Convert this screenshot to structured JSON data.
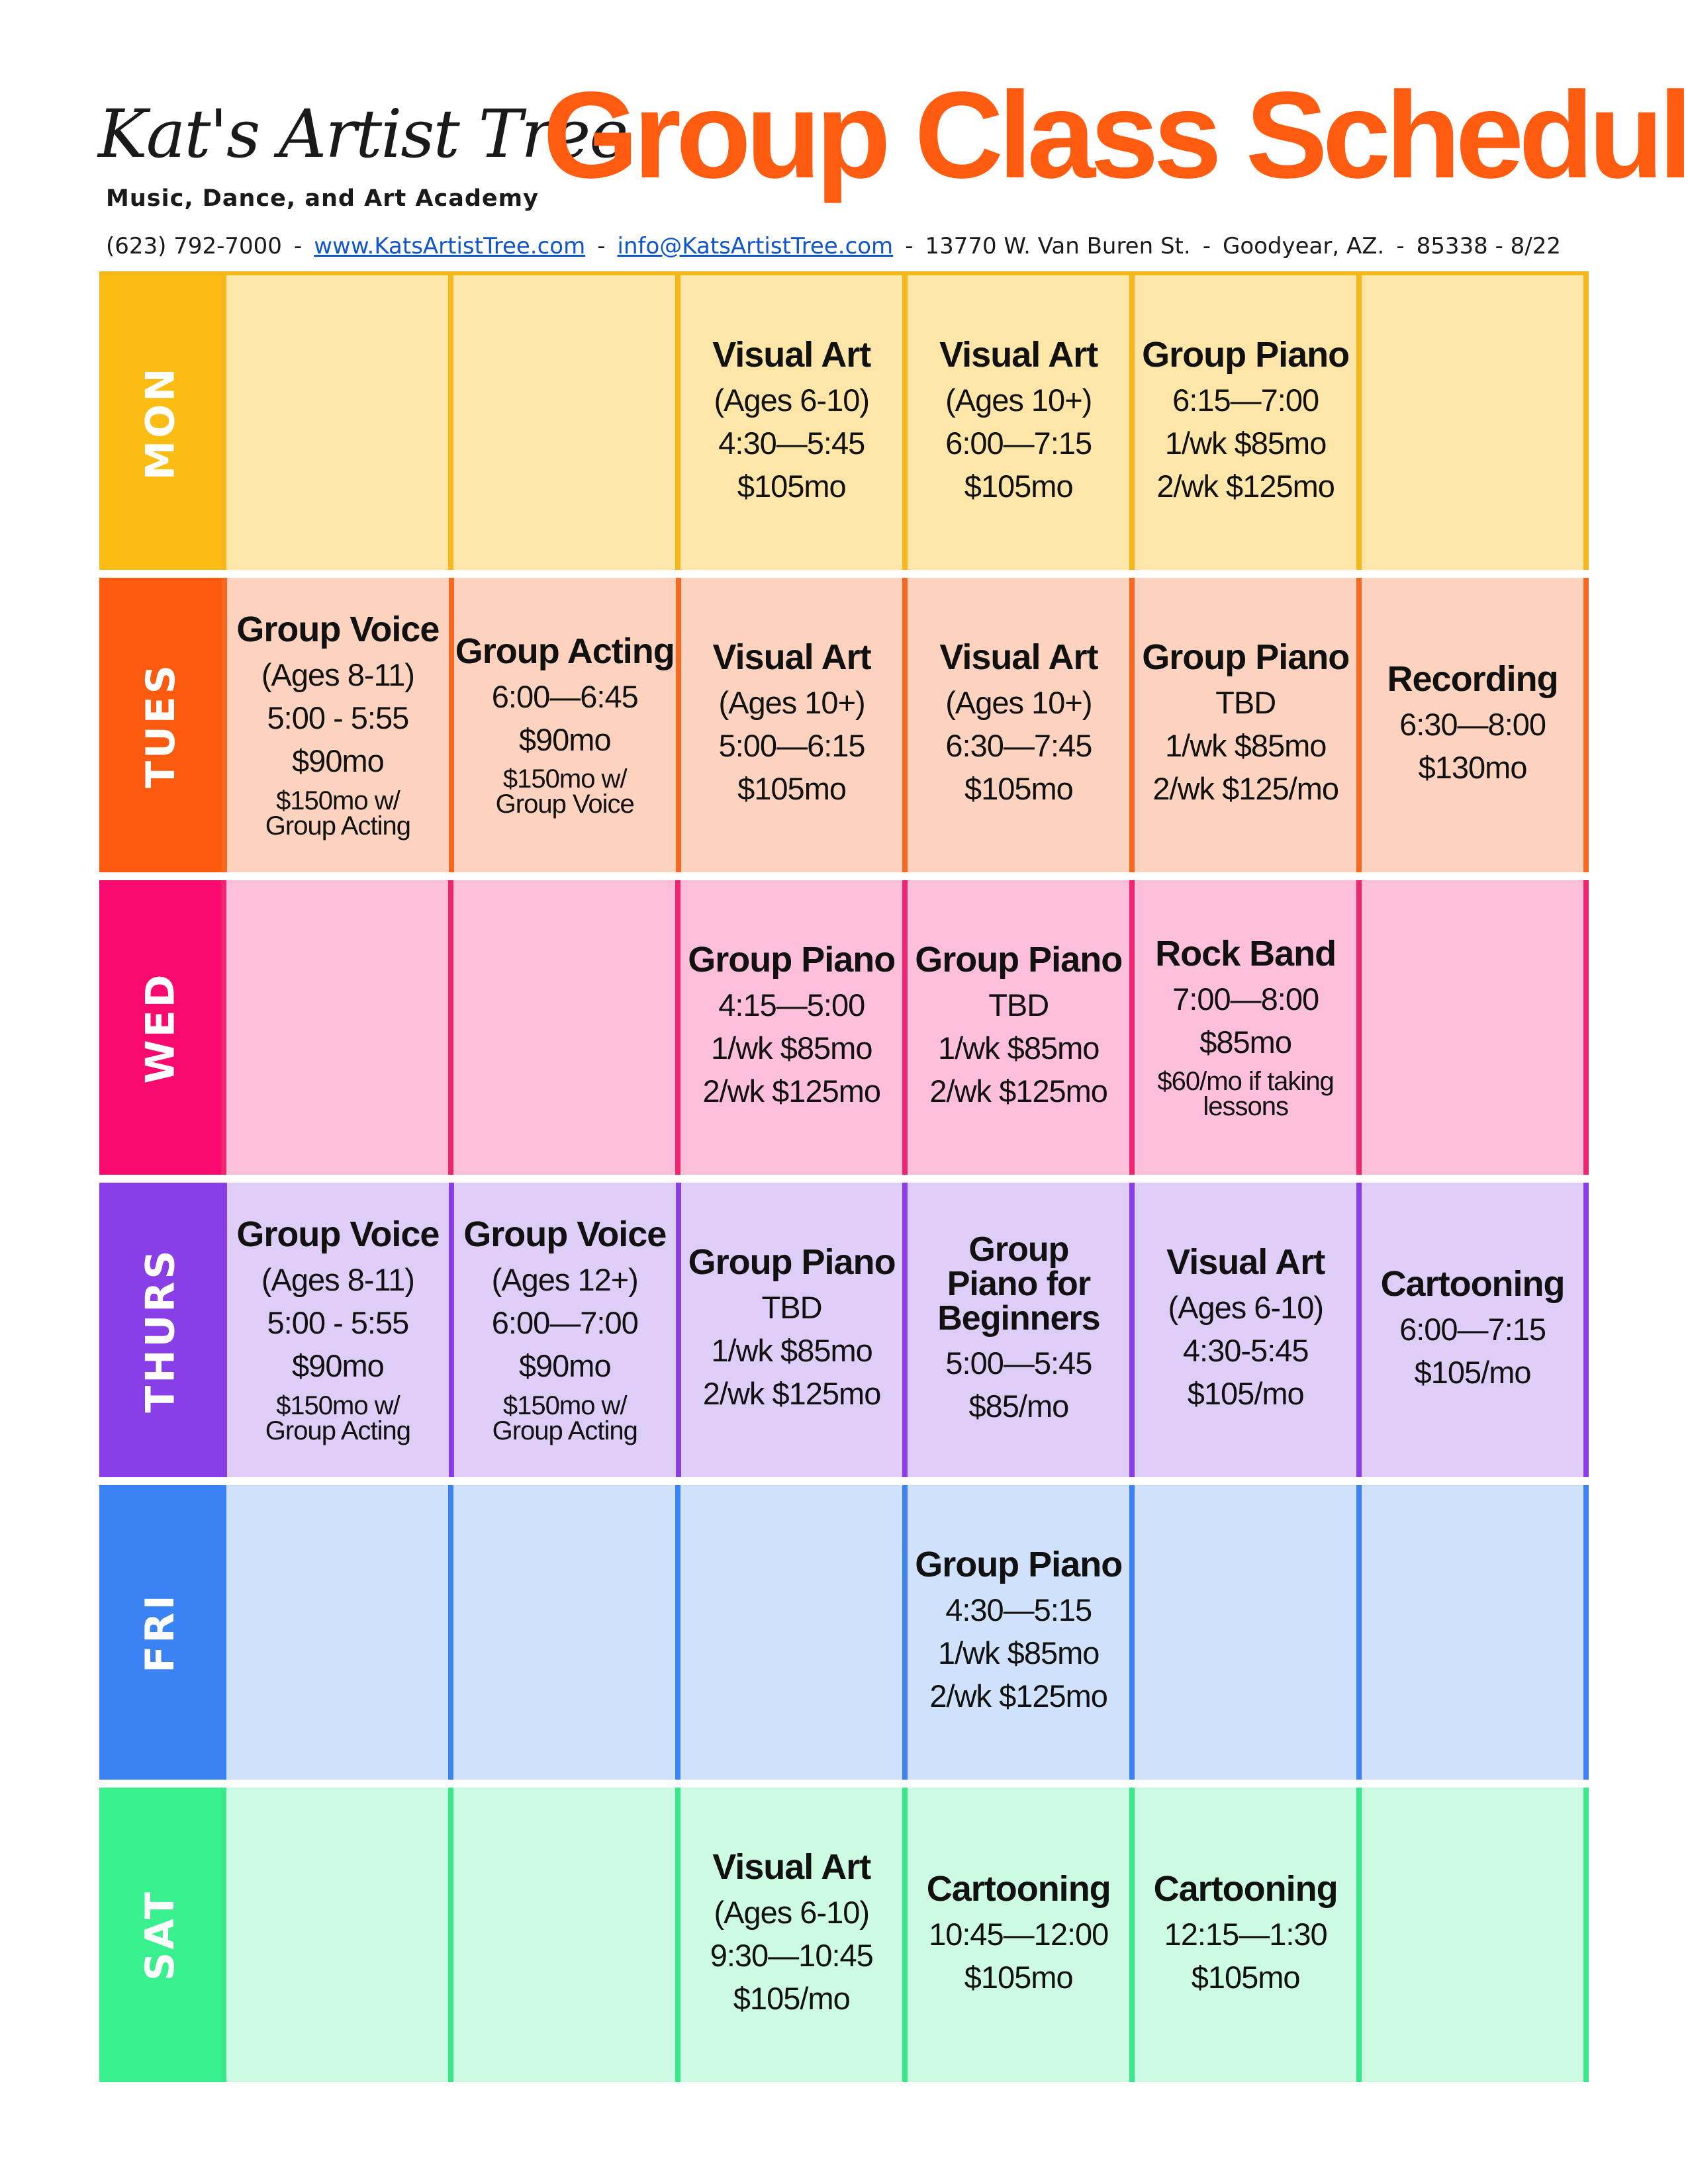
{
  "header": {
    "logo_script": "Kat's Artist Tree",
    "logo_tagline": "Music, Dance, and Art Academy",
    "title": "Group Class Schedule",
    "phone": "(623) 792-7000",
    "website": "www.KatsArtistTree.com",
    "email": "info@KatsArtistTree.com",
    "address": "13770 W. Van Buren St.",
    "city": "Goodyear, AZ.",
    "zip_date": "85338 - 8/22",
    "sep": "-"
  },
  "colors": {
    "title": "#ff5c11",
    "link": "#1155cc"
  },
  "rows": [
    {
      "day": "MON",
      "day_color": "#fbbc14",
      "cell_color": "#fde6a8",
      "border_color": "#f5b71a",
      "cells": [
        {
          "title": "",
          "lines": [],
          "note": ""
        },
        {
          "title": "",
          "lines": [],
          "note": ""
        },
        {
          "title": "Visual Art",
          "lines": [
            "(Ages 6-10)",
            "4:30—5:45",
            "$105mo"
          ],
          "note": ""
        },
        {
          "title": "Visual Art",
          "lines": [
            "(Ages 10+)",
            "6:00—7:15",
            "$105mo"
          ],
          "note": ""
        },
        {
          "title": "Group Piano",
          "lines": [
            "6:15—7:00",
            "1/wk $85mo",
            "2/wk $125mo"
          ],
          "note": ""
        },
        {
          "title": "",
          "lines": [],
          "note": ""
        }
      ]
    },
    {
      "day": "TUES",
      "day_color": "#fc5a0f",
      "cell_color": "#fdd3c0",
      "border_color": "#f56a20",
      "cells": [
        {
          "title": "Group Voice",
          "lines": [
            "(Ages 8-11)",
            "5:00  - 5:55",
            "$90mo"
          ],
          "note": "$150mo w/ Group Acting"
        },
        {
          "title": "Group Acting",
          "lines": [
            "6:00—6:45",
            "$90mo"
          ],
          "note": "$150mo w/ Group Voice"
        },
        {
          "title": "Visual Art",
          "lines": [
            "(Ages 10+)",
            "5:00—6:15",
            "$105mo"
          ],
          "note": ""
        },
        {
          "title": "Visual Art",
          "lines": [
            "(Ages 10+)",
            "6:30—7:45",
            "$105mo"
          ],
          "note": ""
        },
        {
          "title": "Group Piano",
          "lines": [
            "TBD",
            "1/wk $85mo",
            "2/wk $125/mo"
          ],
          "note": ""
        },
        {
          "title": "Recording",
          "lines": [
            "6:30—8:00",
            "$130mo"
          ],
          "note": ""
        }
      ]
    },
    {
      "day": "WED",
      "day_color": "#fa0a6e",
      "cell_color": "#fdbfdb",
      "border_color": "#f0246f",
      "cells": [
        {
          "title": "",
          "lines": [],
          "note": ""
        },
        {
          "title": "",
          "lines": [],
          "note": ""
        },
        {
          "title": "Group Piano",
          "lines": [
            "4:15—5:00",
            "1/wk $85mo",
            "2/wk $125mo"
          ],
          "note": ""
        },
        {
          "title": "Group Piano",
          "lines": [
            "TBD",
            "1/wk $85mo",
            "2/wk $125mo"
          ],
          "note": ""
        },
        {
          "title": "Rock Band",
          "lines": [
            "7:00—8:00",
            "$85mo"
          ],
          "note": "$60/mo if taking lessons"
        },
        {
          "title": "",
          "lines": [],
          "note": ""
        }
      ]
    },
    {
      "day": "THURS",
      "day_color": "#8a3ee8",
      "cell_color": "#ddcdf7",
      "border_color": "#8a3ee8",
      "cells": [
        {
          "title": "Group Voice",
          "lines": [
            "(Ages 8-11)",
            "5:00  - 5:55",
            "$90mo"
          ],
          "note": "$150mo w/ Group Acting"
        },
        {
          "title": "Group Voice",
          "lines": [
            "(Ages 12+)",
            "6:00—7:00",
            "$90mo"
          ],
          "note": "$150mo w/ Group Acting"
        },
        {
          "title": "Group Piano",
          "lines": [
            "TBD",
            "1/wk $85mo",
            "2/wk $125mo"
          ],
          "note": ""
        },
        {
          "title": "Group Piano for Beginners",
          "lines": [
            "5:00—5:45",
            "$85/mo"
          ],
          "note": ""
        },
        {
          "title": "Visual Art",
          "lines": [
            "(Ages 6-10)",
            "4:30-5:45",
            "$105/mo"
          ],
          "note": ""
        },
        {
          "title": "Cartooning",
          "lines": [
            "6:00—7:15",
            "$105/mo"
          ],
          "note": ""
        }
      ]
    },
    {
      "day": "FRI",
      "day_color": "#3b82f4",
      "cell_color": "#cfe1fb",
      "border_color": "#3b82f4",
      "cells": [
        {
          "title": "",
          "lines": [],
          "note": ""
        },
        {
          "title": "",
          "lines": [],
          "note": ""
        },
        {
          "title": "",
          "lines": [],
          "note": ""
        },
        {
          "title": "Group Piano",
          "lines": [
            "4:30—5:15",
            "1/wk $85mo",
            "2/wk $125mo"
          ],
          "note": ""
        },
        {
          "title": "",
          "lines": [],
          "note": ""
        },
        {
          "title": "",
          "lines": [],
          "note": ""
        }
      ]
    },
    {
      "day": "SAT",
      "day_color": "#38f08e",
      "cell_color": "#cdfae2",
      "border_color": "#38e88a",
      "cells": [
        {
          "title": "",
          "lines": [],
          "note": ""
        },
        {
          "title": "",
          "lines": [],
          "note": ""
        },
        {
          "title": "Visual Art",
          "lines": [
            "(Ages 6-10)",
            "9:30—10:45",
            "$105/mo"
          ],
          "note": ""
        },
        {
          "title": "Cartooning",
          "lines": [
            "10:45—12:00",
            "$105mo"
          ],
          "note": ""
        },
        {
          "title": "Cartooning",
          "lines": [
            "12:15—1:30",
            "$105mo"
          ],
          "note": ""
        },
        {
          "title": "",
          "lines": [],
          "note": ""
        }
      ]
    }
  ]
}
